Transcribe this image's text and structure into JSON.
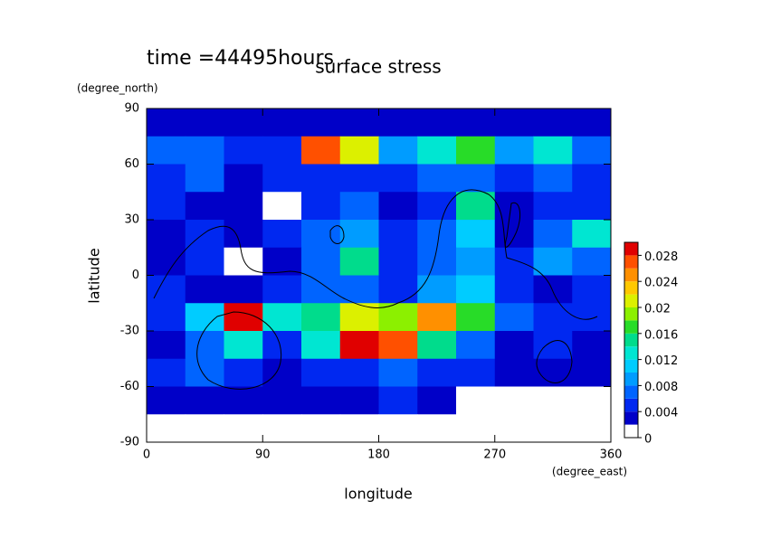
{
  "chart_data": {
    "type": "contour",
    "title": "surface stress",
    "subtitle": "time =44495hours",
    "x_label": "longitude",
    "x_unit": "(degree_east)",
    "y_label": "latitude",
    "y_unit": "(degree_north)",
    "xlim": [
      0,
      360
    ],
    "xticks": [
      0,
      90,
      180,
      270,
      360
    ],
    "ylim": [
      -90,
      90
    ],
    "yticks": [
      -90,
      -60,
      -30,
      0,
      30,
      60,
      90
    ],
    "x": [
      15,
      45,
      75,
      105,
      135,
      165,
      195,
      225,
      255,
      285,
      315,
      345
    ],
    "y": [
      82.5,
      67.5,
      52.5,
      37.5,
      22.5,
      7.5,
      -7.5,
      -22.5,
      -37.5,
      -52.5,
      -67.5,
      -82.5
    ],
    "z": [
      [
        0.003,
        0.003,
        0.003,
        0.003,
        0.003,
        0.003,
        0.003,
        0.003,
        0.003,
        0.003,
        0.003,
        0.003
      ],
      [
        0.007,
        0.006,
        0.004,
        0.005,
        0.026,
        0.02,
        0.008,
        0.012,
        0.016,
        0.008,
        0.012,
        0.006
      ],
      [
        0.005,
        0.007,
        0.003,
        0.004,
        0.004,
        0.005,
        0.004,
        0.006,
        0.007,
        0.005,
        0.006,
        0.004
      ],
      [
        0.004,
        0.003,
        0.002,
        0.001,
        0.004,
        0.006,
        0.003,
        0.005,
        0.014,
        0.002,
        0.004,
        0.005
      ],
      [
        0.002,
        0.005,
        0.003,
        0.004,
        0.006,
        0.008,
        0.004,
        0.006,
        0.01,
        0.003,
        0.006,
        0.012
      ],
      [
        0.003,
        0.004,
        0.001,
        0.002,
        0.006,
        0.014,
        0.005,
        0.006,
        0.008,
        0.004,
        0.008,
        0.006
      ],
      [
        0.004,
        0.003,
        0.003,
        0.004,
        0.006,
        0.006,
        0.005,
        0.008,
        0.01,
        0.004,
        0.003,
        0.004
      ],
      [
        0.004,
        0.01,
        0.028,
        0.012,
        0.014,
        0.02,
        0.018,
        0.024,
        0.016,
        0.006,
        0.005,
        0.004
      ],
      [
        0.003,
        0.006,
        0.012,
        0.004,
        0.012,
        0.028,
        0.026,
        0.014,
        0.006,
        0.002,
        0.004,
        0.002
      ],
      [
        0.004,
        0.007,
        0.005,
        0.003,
        0.004,
        0.005,
        0.006,
        0.005,
        0.004,
        0.003,
        0.002,
        0.003
      ],
      [
        0.002,
        0.003,
        0.002,
        0.002,
        0.003,
        0.003,
        0.004,
        0.002,
        0.001,
        0.001,
        0.001,
        0.001
      ],
      [
        0,
        0,
        0,
        0,
        0,
        0,
        0,
        0,
        0,
        0,
        0,
        0
      ]
    ],
    "clim": [
      0,
      0.03
    ],
    "cticks": [
      0,
      0.004,
      0.008,
      0.012,
      0.016,
      0.02,
      0.024,
      0.028
    ],
    "levels": [
      0,
      0.002,
      0.004,
      0.006,
      0.008,
      0.01,
      0.012,
      0.014,
      0.016,
      0.018,
      0.02,
      0.022,
      0.024,
      0.026,
      0.028,
      0.03
    ],
    "colors": [
      "#ffffff",
      "#0000c8",
      "#0028f0",
      "#0064ff",
      "#009cff",
      "#00ccff",
      "#00e6d2",
      "#00dc8c",
      "#28dc28",
      "#8cf000",
      "#dcf000",
      "#ffc800",
      "#ff9000",
      "#ff5000",
      "#e00000"
    ]
  }
}
